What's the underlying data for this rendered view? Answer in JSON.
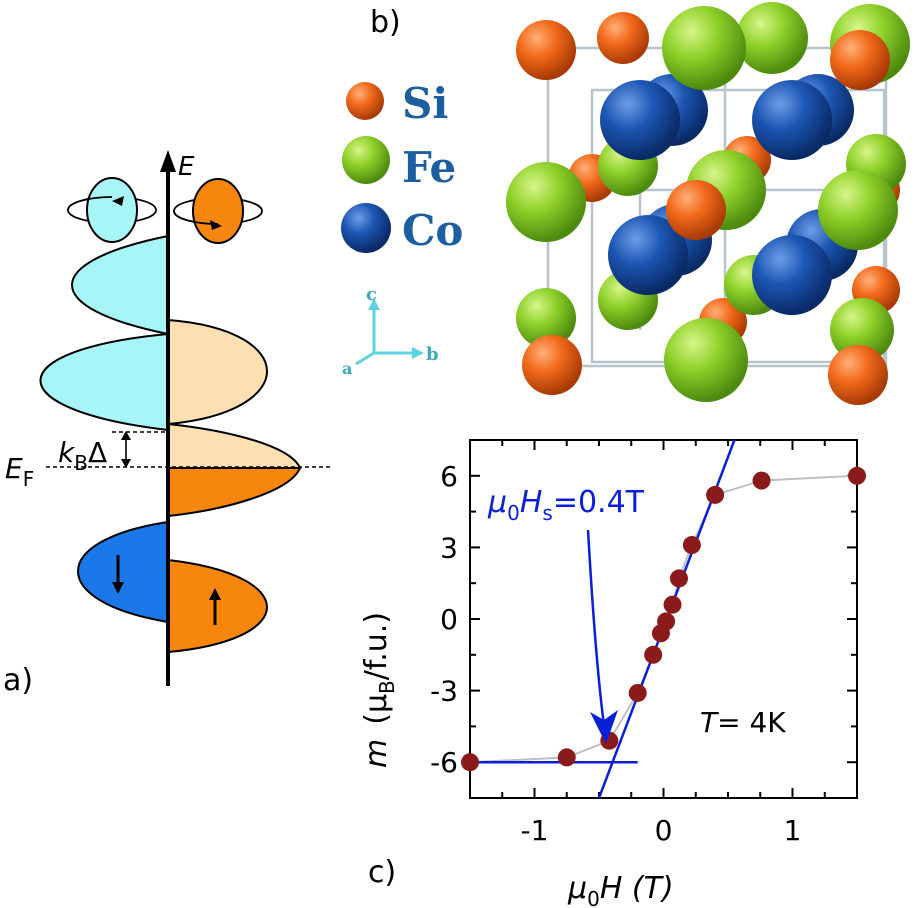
{
  "panels": {
    "a": "a)",
    "b": "b)",
    "c": "c)"
  },
  "dos": {
    "energy_axis": "E",
    "fermi_label": "E",
    "fermi_sub": "F",
    "gap_k": "k",
    "gap_sub": "B",
    "gap_delta": "Δ"
  },
  "structure": {
    "legend": [
      {
        "name": "Si",
        "color": "#f26a1b"
      },
      {
        "name": "Fe",
        "color": "#8fd12a"
      },
      {
        "name": "Co",
        "color": "#1c56b3"
      }
    ],
    "axes": {
      "c": "c",
      "a": "a",
      "b": "b"
    },
    "axes_color": "#5fd3e0"
  },
  "chart_data": {
    "type": "scatter",
    "xlabel_mu": "μ",
    "xlabel_sub": "0",
    "xlabel_rest": "H  (T)",
    "ylabel_m": "m",
    "ylabel_mu": "(μ",
    "ylabel_sub": "B",
    "ylabel_rest": "/f.u.)",
    "xlim": [
      -1.5,
      1.5
    ],
    "ylim": [
      -7.5,
      7.5
    ],
    "xticks": [
      -1,
      0,
      1
    ],
    "xtick_labels": [
      "-1",
      "0",
      "1"
    ],
    "yticks": [
      6,
      3,
      0,
      -3,
      -6
    ],
    "ytick_labels": [
      "6",
      "3",
      "0",
      "-3",
      "-6"
    ],
    "points": [
      {
        "x": -1.5,
        "y": -6.0
      },
      {
        "x": -0.75,
        "y": -5.8
      },
      {
        "x": -0.42,
        "y": -5.1
      },
      {
        "x": -0.2,
        "y": -3.1
      },
      {
        "x": -0.08,
        "y": -1.5
      },
      {
        "x": -0.02,
        "y": -0.6
      },
      {
        "x": 0.02,
        "y": -0.1
      },
      {
        "x": 0.07,
        "y": 0.6
      },
      {
        "x": 0.12,
        "y": 1.7
      },
      {
        "x": 0.22,
        "y": 3.1
      },
      {
        "x": 0.4,
        "y": 5.2
      },
      {
        "x": 0.76,
        "y": 5.8
      },
      {
        "x": 1.5,
        "y": 6.0
      }
    ],
    "point_color": "#8b1a1a",
    "fit_color": "#0a1fd6",
    "fit_steep": {
      "x1": -0.5,
      "y1": -7.5,
      "x2": 0.55,
      "y2": 7.5
    },
    "fit_flat": {
      "x1": -1.5,
      "y1": -6.0,
      "x2": -0.2,
      "y2": -6.0
    },
    "annotation_mu": "μ",
    "annotation_sub0": "0",
    "annotation_H": "H",
    "annotation_subs": "s",
    "annotation_val": "=0.4T",
    "temp_T": "T",
    "temp_val": "= 4K"
  }
}
